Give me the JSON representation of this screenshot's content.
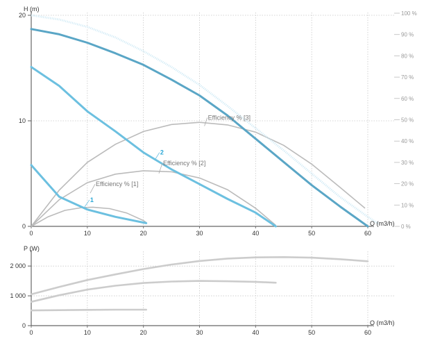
{
  "chart_data": [
    {
      "type": "line",
      "title": "",
      "ylabel": "H (m)",
      "xlabel": "Q (m3/h)",
      "xlim": [
        0,
        60
      ],
      "ylim": [
        0,
        20
      ],
      "x_ticks": [
        "0",
        "10",
        "20",
        "30",
        "40",
        "50",
        "60"
      ],
      "x_tick_values": [
        0,
        10,
        20,
        30,
        40,
        50,
        60
      ],
      "y_ticks": [
        "0",
        "10",
        "20"
      ],
      "y_tick_values": [
        0,
        10,
        20
      ],
      "grid": true,
      "secondary_axis": {
        "label_unit": "%",
        "range": [
          0,
          100
        ],
        "ticks": [
          "0 %",
          "10 %",
          "20 %",
          "30 %",
          "40 %",
          "50 %",
          "60 %",
          "70 %",
          "80 %",
          "90 %",
          "100 %"
        ],
        "tick_values": [
          0,
          10,
          20,
          30,
          40,
          50,
          60,
          70,
          80,
          90,
          100
        ]
      },
      "series": [
        {
          "name": "1",
          "role": "head",
          "color": "#6cc0e0",
          "points": [
            [
              0,
              5.8
            ],
            [
              5,
              2.8
            ],
            [
              10,
              1.6
            ],
            [
              15,
              0.9
            ],
            [
              20.5,
              0.3
            ]
          ]
        },
        {
          "name": "2",
          "role": "head",
          "color": "#6cc0e0",
          "points": [
            [
              0,
              15.1
            ],
            [
              5,
              13.3
            ],
            [
              10,
              10.9
            ],
            [
              15,
              9.0
            ],
            [
              20,
              7.0
            ],
            [
              25,
              5.4
            ],
            [
              30,
              4.0
            ],
            [
              35,
              2.6
            ],
            [
              40,
              1.3
            ],
            [
              43.6,
              0.0
            ]
          ]
        },
        {
          "name": "",
          "role": "head",
          "color": "#5aa6c6",
          "points": [
            [
              0,
              18.7
            ],
            [
              5,
              18.2
            ],
            [
              10,
              17.4
            ],
            [
              15,
              16.4
            ],
            [
              20,
              15.3
            ],
            [
              25,
              13.9
            ],
            [
              30,
              12.4
            ],
            [
              35,
              10.5
            ],
            [
              40,
              8.3
            ],
            [
              45,
              6.1
            ],
            [
              50,
              3.9
            ],
            [
              55,
              1.9
            ],
            [
              60,
              0.0
            ]
          ]
        },
        {
          "name": "Efficiency % [1]",
          "role": "efficiency",
          "color": "#bbbbbb",
          "points": [
            [
              0,
              0
            ],
            [
              3,
              4.5
            ],
            [
              6,
              7.5
            ],
            [
              9,
              8.8
            ],
            [
              11,
              9.0
            ],
            [
              14,
              8.3
            ],
            [
              17,
              6.3
            ],
            [
              20,
              2.7
            ],
            [
              20.5,
              1.8
            ]
          ]
        },
        {
          "name": "Efficiency % [2]",
          "role": "efficiency",
          "color": "#bbbbbb",
          "points": [
            [
              0,
              0
            ],
            [
              5,
              12.5
            ],
            [
              10,
              20.5
            ],
            [
              15,
              24.5
            ],
            [
              20,
              26.1
            ],
            [
              25,
              25.6
            ],
            [
              30,
              22.7
            ],
            [
              35,
              17.2
            ],
            [
              40,
              8.5
            ],
            [
              43.6,
              0.5
            ]
          ]
        },
        {
          "name": "Efficiency % [3]",
          "role": "efficiency",
          "color": "#bbbbbb",
          "points": [
            [
              0,
              0
            ],
            [
              5,
              17
            ],
            [
              10,
              30
            ],
            [
              15,
              38.5
            ],
            [
              20,
              44.5
            ],
            [
              25,
              47.8
            ],
            [
              30,
              48.8
            ],
            [
              35,
              47.6
            ],
            [
              40,
              44.2
            ],
            [
              45,
              38.0
            ],
            [
              50,
              29.2
            ],
            [
              55,
              18.4
            ],
            [
              59.5,
              8.5
            ]
          ]
        },
        {
          "name": "",
          "role": "head-envelope",
          "color": "#cde9f5",
          "points": [
            [
              0,
              20
            ],
            [
              5,
              19.6
            ],
            [
              10,
              18.9
            ],
            [
              15,
              17.9
            ],
            [
              20,
              16.6
            ],
            [
              25,
              15.1
            ],
            [
              30,
              13.4
            ],
            [
              35,
              11.4
            ],
            [
              40,
              9.3
            ],
            [
              45,
              7.2
            ],
            [
              50,
              5.0
            ],
            [
              55,
              2.8
            ],
            [
              60,
              0.9
            ],
            [
              62,
              0.2
            ]
          ]
        }
      ],
      "annotations": [
        {
          "text": "1",
          "at": [
            10.5,
            2.3
          ]
        },
        {
          "text": "2",
          "at": [
            23,
            6.8
          ]
        },
        {
          "text": "Efficiency % [1]",
          "at": [
            11.5,
            3.8
          ]
        },
        {
          "text": "Efficiency % [2]",
          "at": [
            23.5,
            5.8
          ]
        },
        {
          "text": "Efficiency % [3]",
          "at": [
            31.5,
            10.1
          ]
        }
      ]
    },
    {
      "type": "line",
      "title": "",
      "ylabel": "P (W)",
      "xlabel": "Q (m3/h)",
      "xlim": [
        0,
        60
      ],
      "ylim": [
        0,
        2400
      ],
      "x_ticks": [
        "0",
        "10",
        "20",
        "30",
        "40",
        "50",
        "60"
      ],
      "x_tick_values": [
        0,
        10,
        20,
        30,
        40,
        50,
        60
      ],
      "y_ticks": [
        "0",
        "1 000",
        "2 000"
      ],
      "y_tick_values": [
        0,
        1000,
        2000
      ],
      "grid": true,
      "series": [
        {
          "name": "",
          "color": "#cccccc",
          "points": [
            [
              0,
              510
            ],
            [
              5,
              520
            ],
            [
              10,
              530
            ],
            [
              15,
              535
            ],
            [
              20.5,
              535
            ]
          ]
        },
        {
          "name": "",
          "color": "#cccccc",
          "points": [
            [
              0,
              800
            ],
            [
              5,
              1020
            ],
            [
              10,
              1210
            ],
            [
              15,
              1340
            ],
            [
              20,
              1430
            ],
            [
              25,
              1480
            ],
            [
              30,
              1500
            ],
            [
              35,
              1490
            ],
            [
              40,
              1470
            ],
            [
              43.6,
              1440
            ]
          ]
        },
        {
          "name": "",
          "color": "#cccccc",
          "points": [
            [
              0,
              1050
            ],
            [
              5,
              1300
            ],
            [
              10,
              1530
            ],
            [
              15,
              1720
            ],
            [
              20,
              1900
            ],
            [
              25,
              2050
            ],
            [
              30,
              2170
            ],
            [
              35,
              2250
            ],
            [
              40,
              2290
            ],
            [
              45,
              2300
            ],
            [
              50,
              2280
            ],
            [
              55,
              2230
            ],
            [
              60,
              2160
            ]
          ]
        }
      ]
    }
  ]
}
